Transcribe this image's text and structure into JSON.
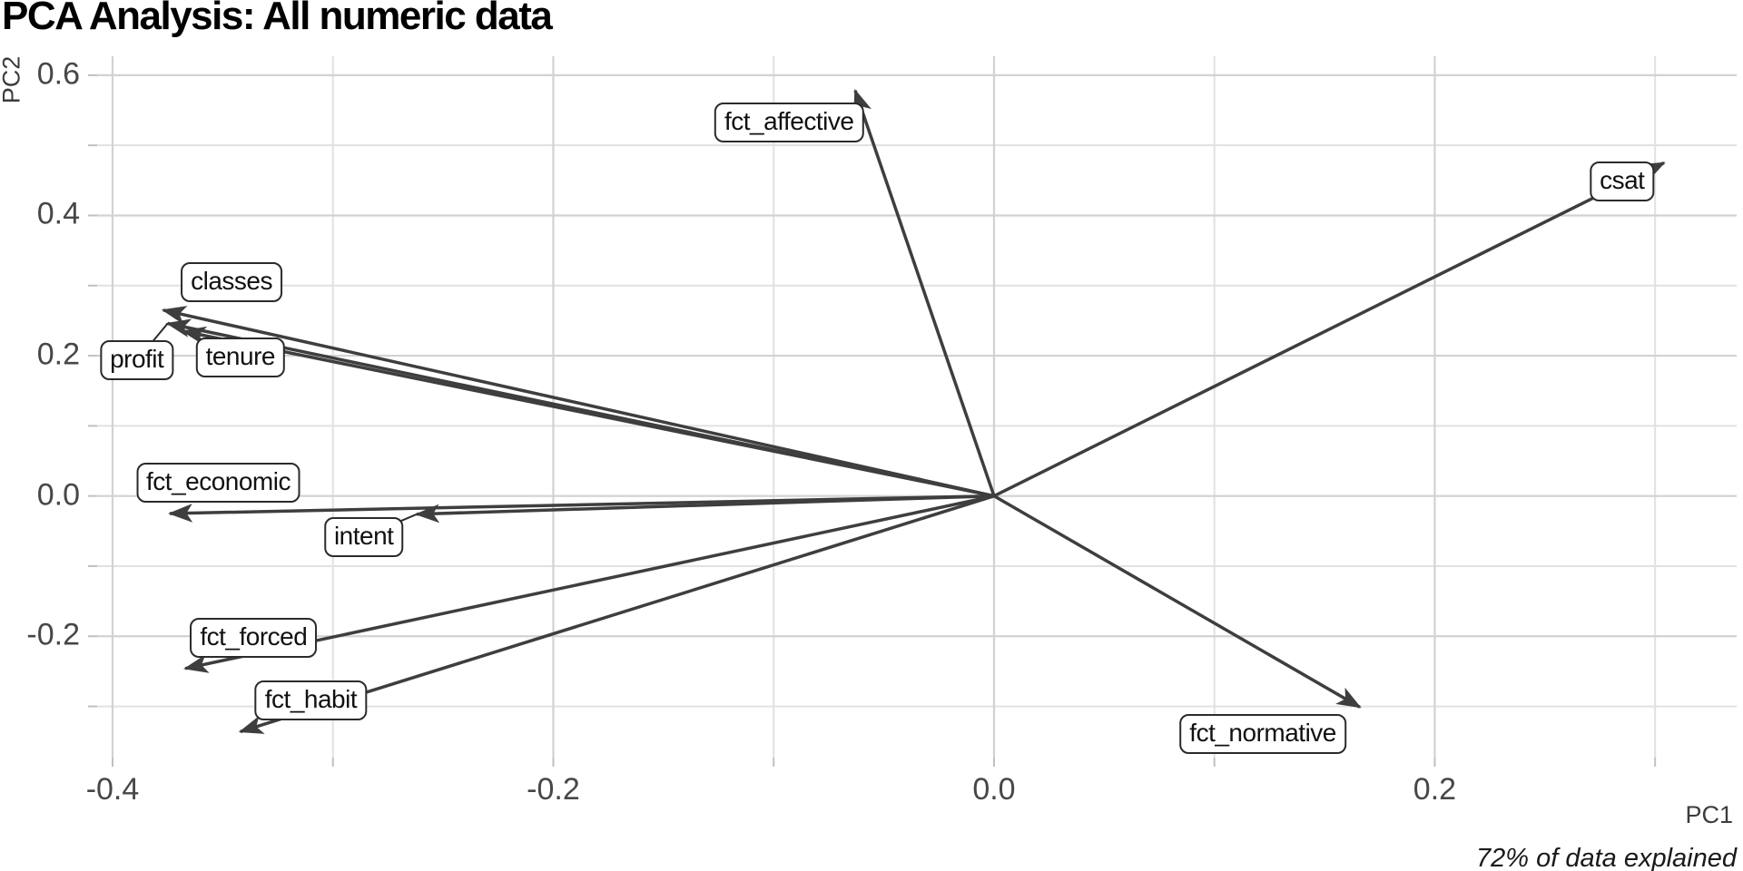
{
  "chart_data": {
    "type": "scatter",
    "subtype": "pca-biplot-loadings",
    "title": "PCA Analysis: All numeric data",
    "xlabel": "PC1",
    "ylabel": "PC2",
    "caption": "72% of data explained",
    "xlim": [
      -0.407,
      0.337
    ],
    "ylim": [
      -0.373,
      0.627
    ],
    "grid": true,
    "legend": false,
    "x_axis": {
      "major_breaks": [
        -0.4,
        -0.2,
        0.0,
        0.2
      ],
      "major_labels": [
        "-0.4",
        "-0.2",
        "0.0",
        "0.2"
      ],
      "minor_breaks": [
        -0.3,
        -0.1,
        0.1,
        0.3
      ]
    },
    "y_axis": {
      "major_breaks": [
        0.6,
        0.4,
        0.2,
        0.0,
        -0.2
      ],
      "major_labels": [
        "0.6",
        "0.4",
        "0.2",
        "0.0",
        "-0.2"
      ],
      "minor_breaks": [
        0.5,
        0.3,
        0.1,
        -0.1,
        -0.3
      ]
    },
    "vectors": [
      {
        "name": "csat",
        "x": 0.304,
        "y": 0.475,
        "label_x": 0.285,
        "label_y": 0.448,
        "leader": false
      },
      {
        "name": "fct_affective",
        "x": -0.063,
        "y": 0.578,
        "label_x": -0.093,
        "label_y": 0.532,
        "leader": false
      },
      {
        "name": "classes",
        "x": -0.377,
        "y": 0.265,
        "label_x": -0.346,
        "label_y": 0.305,
        "leader": false
      },
      {
        "name": "profit",
        "x": -0.375,
        "y": 0.246,
        "label_x": -0.389,
        "label_y": 0.193,
        "leader": true
      },
      {
        "name": "tenure",
        "x": -0.368,
        "y": 0.235,
        "label_x": -0.342,
        "label_y": 0.198,
        "leader": false
      },
      {
        "name": "fct_economic",
        "x": -0.374,
        "y": -0.025,
        "label_x": -0.352,
        "label_y": 0.019,
        "leader": false
      },
      {
        "name": "intent",
        "x": -0.262,
        "y": -0.026,
        "label_x": -0.286,
        "label_y": -0.058,
        "leader": true
      },
      {
        "name": "fct_forced",
        "x": -0.367,
        "y": -0.246,
        "label_x": -0.336,
        "label_y": -0.202,
        "leader": false
      },
      {
        "name": "fct_habit",
        "x": -0.342,
        "y": -0.336,
        "label_x": -0.31,
        "label_y": -0.291,
        "leader": false
      },
      {
        "name": "fct_normative",
        "x": 0.166,
        "y": -0.301,
        "label_x": 0.122,
        "label_y": -0.339,
        "leader": false
      }
    ],
    "colors": {
      "vector": "#3e3e3e",
      "leader": "#2b2b2b",
      "grid_major": "#d2d2d2",
      "grid_minor": "#e1e1e1",
      "tick": "#c0c0c0",
      "tick_label": "#474747",
      "axis_label": "#3c3c3c",
      "title": "#000000",
      "caption": "#1a1a1a",
      "label_bg": "#ffffff",
      "label_border": "#2b2b2b",
      "label_text": "#111111"
    }
  }
}
